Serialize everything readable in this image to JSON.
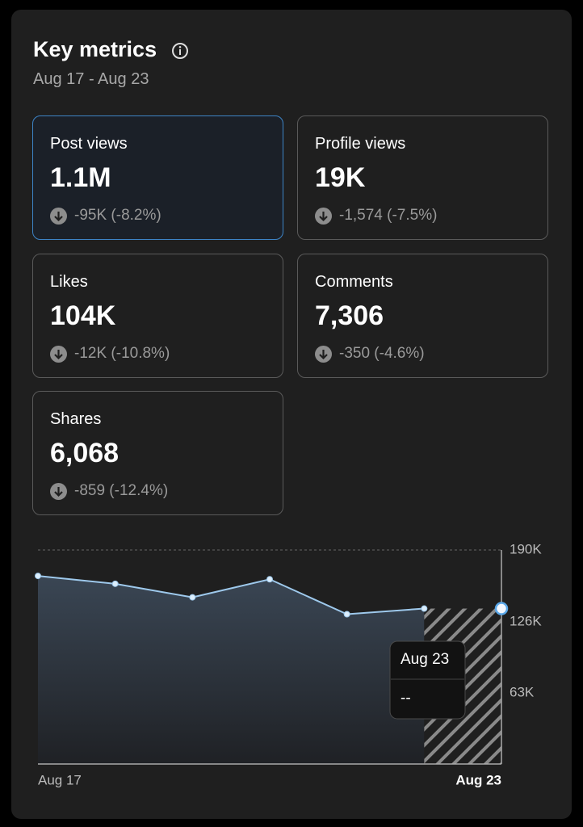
{
  "header": {
    "title": "Key metrics",
    "subtitle": "Aug 17 - Aug 23"
  },
  "cards": [
    {
      "label": "Post views",
      "value": "1.1M",
      "change": "-95K (-8.2%)"
    },
    {
      "label": "Profile views",
      "value": "19K",
      "change": "-1,574 (-7.5%)"
    },
    {
      "label": "Likes",
      "value": "104K",
      "change": "-12K (-10.8%)"
    },
    {
      "label": "Comments",
      "value": "7,306",
      "change": "-350 (-4.6%)"
    },
    {
      "label": "Shares",
      "value": "6,068",
      "change": "-859 (-12.4%)"
    }
  ],
  "chart_data": {
    "type": "area",
    "categories": [
      "Aug 17",
      null,
      null,
      null,
      null,
      null,
      "Aug 23"
    ],
    "values": [
      167000,
      160000,
      148000,
      164000,
      133000,
      138000,
      138000
    ],
    "color": "#9ec9ec",
    "ylim": [
      0,
      190000
    ],
    "yticks": [
      {
        "value": 63000,
        "label": "63K"
      },
      {
        "value": 126000,
        "label": "126K"
      },
      {
        "value": 190000,
        "label": "190K"
      }
    ],
    "grid": true
  },
  "tooltip": {
    "value": "--"
  }
}
